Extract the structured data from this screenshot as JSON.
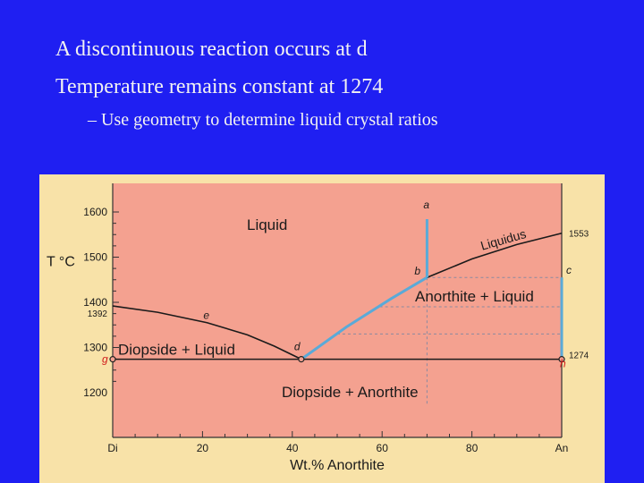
{
  "slide": {
    "bullets": [
      "A discontinuous reaction occurs at d",
      "Temperature remains constant at 1274"
    ],
    "sub_bullet": "– Use geometry to determine liquid crystal ratios"
  },
  "diagram": {
    "x_axis_title": "Wt.% Anorthite",
    "y_axis_title": "T °C",
    "x_ticks": [
      {
        "label": "Di",
        "value": 0
      },
      {
        "label": "20",
        "value": 20
      },
      {
        "label": "40",
        "value": 40
      },
      {
        "label": "60",
        "value": 60
      },
      {
        "label": "80",
        "value": 80
      },
      {
        "label": "An",
        "value": 100
      }
    ],
    "y_ticks": [
      {
        "label": "1600",
        "value": 1600
      },
      {
        "label": "1500",
        "value": 1500
      },
      {
        "label": "1400",
        "value": 1400
      },
      {
        "label": "1300",
        "value": 1300
      },
      {
        "label": "1200",
        "value": 1200
      }
    ],
    "marker_labels": [
      {
        "label": "1392",
        "value": 1392
      },
      {
        "label": "1553",
        "value": 1553
      },
      {
        "label": "1274",
        "value": 1274
      }
    ],
    "field_labels": {
      "liquid": "Liquid",
      "liquidus": "Liquidus",
      "anorthite_liquid": "Anorthite + Liquid",
      "diopside_liquid": "Diopside + Liquid",
      "diopside_anorthite": "Diopside + Anorthite"
    },
    "points": {
      "a": {
        "label": "a",
        "x": 70,
        "T": 1600
      },
      "b": {
        "label": "b",
        "x": 70,
        "T": 1455
      },
      "c": {
        "label": "c",
        "x": 100,
        "T": 1455
      },
      "d": {
        "label": "d",
        "x": 42,
        "T": 1274
      },
      "e": {
        "label": "e",
        "x": 21,
        "T": 1355
      },
      "g": {
        "label": "g",
        "x": 0,
        "T": 1274
      },
      "h": {
        "label": "h",
        "x": 100,
        "T": 1274
      }
    },
    "colors": {
      "field": "#f4a190",
      "panel": "#f8e2a8",
      "path": "#5aaad8",
      "curve": "#1a1a1a",
      "point_label": "#d01a1a"
    }
  }
}
